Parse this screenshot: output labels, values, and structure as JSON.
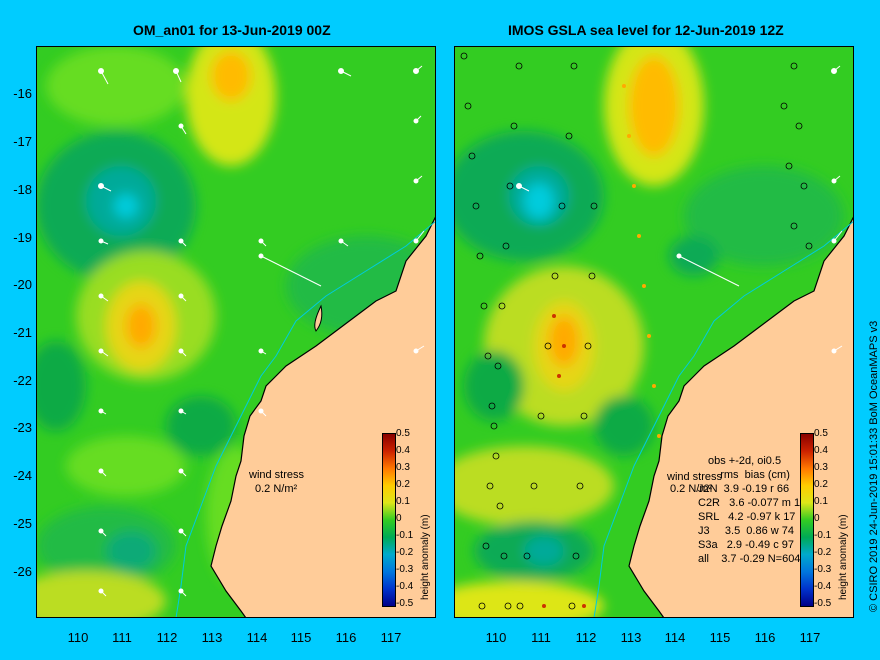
{
  "left_title": "OM_an01 for 13-Jun-2019 00Z",
  "right_title": "IMOS GSLA sea level  for 12-Jun-2019 12Z",
  "y_ticks": [
    "-16",
    "-17",
    "-18",
    "-19",
    "-20",
    "-21",
    "-22",
    "-23",
    "-24",
    "-25",
    "-26"
  ],
  "x_ticks": [
    "110",
    "111",
    "112",
    "113",
    "114",
    "115",
    "116",
    "117"
  ],
  "colorbar": {
    "title": "height anomaly (m)",
    "labels": [
      "0.5",
      "0.4",
      "0.3",
      "0.2",
      "0.1",
      "0",
      "-0.1",
      "-0.2",
      "-0.3",
      "-0.4",
      "-0.5"
    ]
  },
  "wind_stress": {
    "label": "wind stress",
    "scale": "0.2 N/m²"
  },
  "stats": {
    "line1": "obs +-2d, oi0.5",
    "line2": "    rms  bias (cm)",
    "rows": [
      "J2N  3.9 -0.19 r 66",
      "C2R   3.6 -0.077 m 1",
      "SRL   4.2 -0.97 k 17",
      "J3     3.5  0.86 w 74",
      "S3a   2.9 -0.49 c 97",
      "all    3.7 -0.29 N=604"
    ]
  },
  "credit": "© CSIRO 2019   24-Jun-2019 15:01:33 BoM OceanMAPS v3",
  "colors": {
    "background": "#00ccff",
    "land": "#ffcc99",
    "green": "#22cc22",
    "yellow": "#e6e619",
    "orange": "#ffaa00",
    "teal": "#00aa88",
    "cyan": "#00ccdd"
  }
}
